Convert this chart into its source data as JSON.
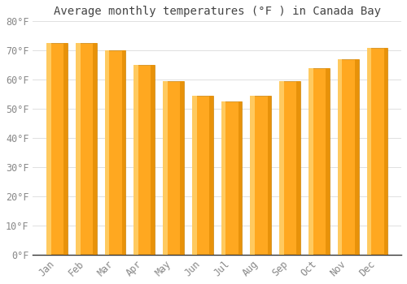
{
  "title": "Average monthly temperatures (°F ) in Canada Bay",
  "months": [
    "Jan",
    "Feb",
    "Mar",
    "Apr",
    "May",
    "Jun",
    "Jul",
    "Aug",
    "Sep",
    "Oct",
    "Nov",
    "Dec"
  ],
  "values": [
    72.5,
    72.5,
    70,
    65,
    59.5,
    54.5,
    52.5,
    54.5,
    59.5,
    64,
    67,
    71
  ],
  "bar_color_main": "#FFA820",
  "bar_color_left": "#FFCA60",
  "bar_color_right": "#E8920A",
  "bar_edge_color": "#C8820A",
  "background_color": "#FFFFFF",
  "plot_bg_color": "#FFFFFF",
  "ylim": [
    0,
    80
  ],
  "yticks": [
    0,
    10,
    20,
    30,
    40,
    50,
    60,
    70,
    80
  ],
  "ytick_labels": [
    "0°F",
    "10°F",
    "20°F",
    "30°F",
    "40°F",
    "50°F",
    "60°F",
    "70°F",
    "80°F"
  ],
  "title_fontsize": 10,
  "tick_fontsize": 8.5,
  "grid_color": "#E0E0E0",
  "font_family": "monospace",
  "tick_color": "#888888"
}
